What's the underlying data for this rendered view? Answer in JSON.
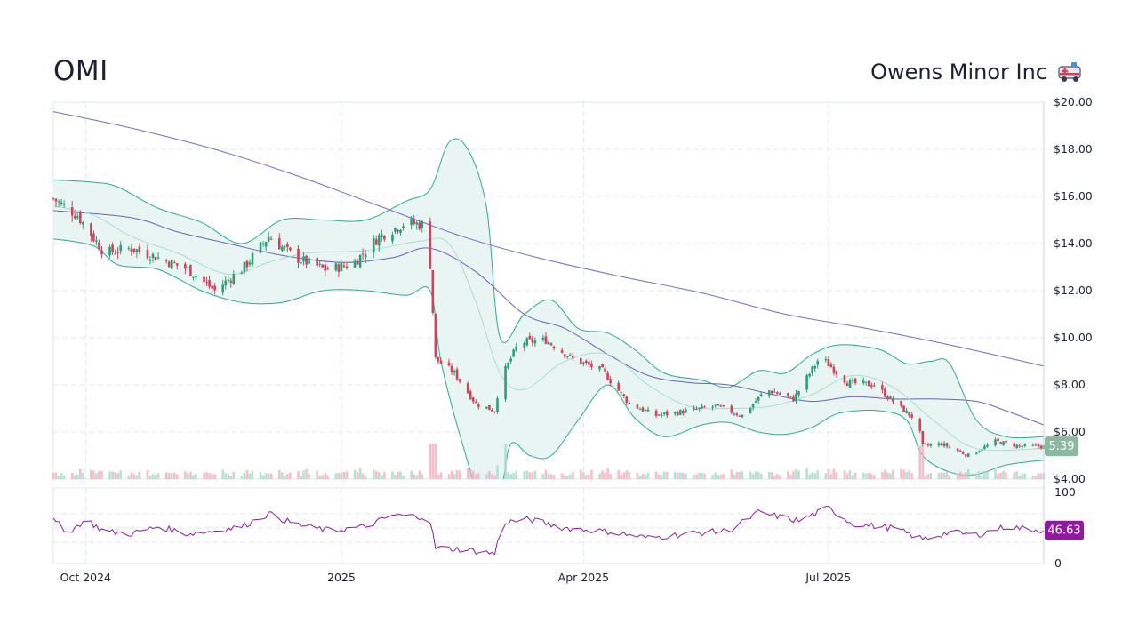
{
  "header": {
    "ticker": "OMI",
    "company": "Owens Minor Inc"
  },
  "colors": {
    "up": "#2e9e76",
    "down": "#d1435b",
    "band_fill": "#e8f5f3",
    "band_line": "#2eaa91",
    "ma_fast": "#a8ddd0",
    "ma_mid": "#6b63b5",
    "ma_long": "#6e6fbf",
    "rsi": "#8e1b9e",
    "price_badge": "#8bb89f",
    "rsi_badge": "#8e1b9e",
    "grid": "#dde7ee"
  },
  "chart_data": {
    "type": "candlestick",
    "price_axis": {
      "ticks": [
        "$20.00",
        "$18.00",
        "$16.00",
        "$14.00",
        "$12.00",
        "$10.00",
        "$8.00",
        "$6.00",
        "$4.00"
      ],
      "range": [
        4,
        20
      ]
    },
    "rsi_axis": {
      "ticks": [
        "100",
        "0"
      ],
      "range": [
        0,
        100
      ]
    },
    "x_axis": {
      "labels": [
        "Oct 2024",
        "2025",
        "Apr 2025",
        "Jul 2025"
      ],
      "range": [
        "2024-09-16",
        "2025-09-19"
      ]
    },
    "last_price_label": "5.39",
    "last_rsi_label": "46.63",
    "price_keypoints": [
      [
        "2024-09-16",
        15.9
      ],
      [
        "2024-09-25",
        15.2
      ],
      [
        "2024-10-05",
        13.6
      ],
      [
        "2024-10-15",
        13.8
      ],
      [
        "2024-10-25",
        13.4
      ],
      [
        "2024-11-05",
        12.9
      ],
      [
        "2024-11-15",
        12.0
      ],
      [
        "2024-11-26",
        13.0
      ],
      [
        "2024-12-05",
        14.3
      ],
      [
        "2024-12-15",
        13.4
      ],
      [
        "2024-12-26",
        12.9
      ],
      [
        "2025-01-05",
        13.1
      ],
      [
        "2025-01-15",
        14.3
      ],
      [
        "2025-01-25",
        14.9
      ],
      [
        "2025-01-31",
        14.8
      ],
      [
        "2025-02-03",
        13.1
      ],
      [
        "2025-02-05",
        9.1
      ],
      [
        "2025-02-12",
        8.5
      ],
      [
        "2025-02-20",
        7.2
      ],
      [
        "2025-02-27",
        6.9
      ],
      [
        "2025-03-01",
        8.2
      ],
      [
        "2025-03-08",
        9.8
      ],
      [
        "2025-03-18",
        9.9
      ],
      [
        "2025-03-28",
        9.1
      ],
      [
        "2025-04-08",
        8.6
      ],
      [
        "2025-04-18",
        7.2
      ],
      [
        "2025-04-28",
        6.7
      ],
      [
        "2025-05-10",
        6.9
      ],
      [
        "2025-05-20",
        7.1
      ],
      [
        "2025-05-30",
        6.7
      ],
      [
        "2025-06-08",
        7.8
      ],
      [
        "2025-06-18",
        7.4
      ],
      [
        "2025-06-28",
        9.2
      ],
      [
        "2025-07-08",
        8.1
      ],
      [
        "2025-07-18",
        8.0
      ],
      [
        "2025-07-28",
        7.0
      ],
      [
        "2025-08-03",
        6.5
      ],
      [
        "2025-08-05",
        5.4
      ],
      [
        "2025-08-12",
        5.5
      ],
      [
        "2025-08-22",
        5.0
      ],
      [
        "2025-09-01",
        5.6
      ],
      [
        "2025-09-10",
        5.4
      ],
      [
        "2025-09-19",
        5.39
      ]
    ],
    "bollinger_upper": [
      [
        "2024-09-16",
        16.7
      ],
      [
        "2024-10-01",
        16.6
      ],
      [
        "2024-10-10",
        16.4
      ],
      [
        "2024-10-25",
        15.5
      ],
      [
        "2024-11-10",
        14.9
      ],
      [
        "2024-11-25",
        14.0
      ],
      [
        "2024-12-10",
        15.0
      ],
      [
        "2024-12-25",
        15.0
      ],
      [
        "2025-01-10",
        15.0
      ],
      [
        "2025-01-25",
        15.8
      ],
      [
        "2025-02-03",
        16.3
      ],
      [
        "2025-02-10",
        18.3
      ],
      [
        "2025-02-17",
        18.0
      ],
      [
        "2025-02-24",
        15.5
      ],
      [
        "2025-03-01",
        10.0
      ],
      [
        "2025-03-10",
        11.0
      ],
      [
        "2025-03-20",
        11.6
      ],
      [
        "2025-03-30",
        10.4
      ],
      [
        "2025-04-10",
        10.2
      ],
      [
        "2025-04-20",
        9.5
      ],
      [
        "2025-05-01",
        8.5
      ],
      [
        "2025-05-15",
        8.2
      ],
      [
        "2025-05-25",
        7.9
      ],
      [
        "2025-06-05",
        8.6
      ],
      [
        "2025-06-15",
        8.5
      ],
      [
        "2025-06-25",
        9.3
      ],
      [
        "2025-07-05",
        9.7
      ],
      [
        "2025-07-20",
        9.5
      ],
      [
        "2025-07-30",
        8.9
      ],
      [
        "2025-08-08",
        9.0
      ],
      [
        "2025-08-15",
        8.9
      ],
      [
        "2025-08-25",
        6.5
      ],
      [
        "2025-09-05",
        5.8
      ],
      [
        "2025-09-19",
        5.8
      ]
    ],
    "bollinger_lower": [
      [
        "2024-09-16",
        14.2
      ],
      [
        "2024-10-01",
        13.9
      ],
      [
        "2024-10-10",
        13.1
      ],
      [
        "2024-10-25",
        12.9
      ],
      [
        "2024-11-10",
        12.0
      ],
      [
        "2024-11-25",
        11.5
      ],
      [
        "2024-12-10",
        11.5
      ],
      [
        "2024-12-25",
        12.0
      ],
      [
        "2025-01-10",
        12.0
      ],
      [
        "2025-01-25",
        11.8
      ],
      [
        "2025-02-03",
        12.0
      ],
      [
        "2025-02-07",
        9.0
      ],
      [
        "2025-02-15",
        5.5
      ],
      [
        "2025-02-22",
        3.2
      ],
      [
        "2025-03-01",
        3.5
      ],
      [
        "2025-03-05",
        5.5
      ],
      [
        "2025-03-12",
        5.0
      ],
      [
        "2025-03-20",
        5.0
      ],
      [
        "2025-03-30",
        6.5
      ],
      [
        "2025-04-10",
        8.0
      ],
      [
        "2025-04-20",
        6.6
      ],
      [
        "2025-05-01",
        5.8
      ],
      [
        "2025-05-15",
        6.3
      ],
      [
        "2025-05-25",
        6.4
      ],
      [
        "2025-06-05",
        6.0
      ],
      [
        "2025-06-15",
        5.9
      ],
      [
        "2025-06-25",
        6.2
      ],
      [
        "2025-07-05",
        6.8
      ],
      [
        "2025-07-20",
        6.9
      ],
      [
        "2025-07-30",
        6.5
      ],
      [
        "2025-08-05",
        5.0
      ],
      [
        "2025-08-15",
        4.3
      ],
      [
        "2025-08-25",
        4.2
      ],
      [
        "2025-09-05",
        4.6
      ],
      [
        "2025-09-19",
        4.8
      ]
    ],
    "ma_fast": [
      [
        "2024-09-16",
        15.6
      ],
      [
        "2024-10-01",
        15.2
      ],
      [
        "2024-10-15",
        14.3
      ],
      [
        "2024-11-01",
        13.6
      ],
      [
        "2024-11-20",
        12.7
      ],
      [
        "2024-12-05",
        13.2
      ],
      [
        "2024-12-20",
        13.6
      ],
      [
        "2025-01-10",
        13.7
      ],
      [
        "2025-01-30",
        14.1
      ],
      [
        "2025-02-10",
        14.0
      ],
      [
        "2025-02-20",
        11.5
      ],
      [
        "2025-03-01",
        8.5
      ],
      [
        "2025-03-10",
        7.8
      ],
      [
        "2025-03-25",
        9.0
      ],
      [
        "2025-04-10",
        9.3
      ],
      [
        "2025-04-25",
        8.0
      ],
      [
        "2025-05-10",
        7.1
      ],
      [
        "2025-05-25",
        7.0
      ],
      [
        "2025-06-10",
        7.1
      ],
      [
        "2025-06-25",
        7.6
      ],
      [
        "2025-07-10",
        8.4
      ],
      [
        "2025-07-25",
        7.9
      ],
      [
        "2025-08-10",
        6.4
      ],
      [
        "2025-08-25",
        5.3
      ],
      [
        "2025-09-19",
        5.3
      ]
    ],
    "ma_mid": [
      [
        "2024-09-16",
        15.4
      ],
      [
        "2024-10-15",
        15.1
      ],
      [
        "2024-11-01",
        14.5
      ],
      [
        "2024-11-20",
        14.0
      ],
      [
        "2024-12-10",
        13.5
      ],
      [
        "2025-01-01",
        13.2
      ],
      [
        "2025-01-20",
        13.4
      ],
      [
        "2025-02-03",
        13.8
      ],
      [
        "2025-02-20",
        12.8
      ],
      [
        "2025-03-10",
        11.0
      ],
      [
        "2025-03-25",
        10.4
      ],
      [
        "2025-04-10",
        9.3
      ],
      [
        "2025-04-25",
        8.4
      ],
      [
        "2025-05-10",
        8.1
      ],
      [
        "2025-05-25",
        8.0
      ],
      [
        "2025-06-10",
        7.6
      ],
      [
        "2025-06-25",
        7.3
      ],
      [
        "2025-07-10",
        7.5
      ],
      [
        "2025-07-25",
        7.4
      ],
      [
        "2025-08-10",
        7.4
      ],
      [
        "2025-08-25",
        7.3
      ],
      [
        "2025-09-05",
        6.9
      ],
      [
        "2025-09-19",
        6.3
      ]
    ],
    "ma_long": [
      [
        "2024-09-16",
        19.6
      ],
      [
        "2024-10-15",
        18.9
      ],
      [
        "2024-11-15",
        18.0
      ],
      [
        "2024-12-15",
        16.9
      ],
      [
        "2025-01-15",
        15.6
      ],
      [
        "2025-02-15",
        14.3
      ],
      [
        "2025-03-15",
        13.4
      ],
      [
        "2025-04-15",
        12.6
      ],
      [
        "2025-05-15",
        11.9
      ],
      [
        "2025-06-15",
        11.0
      ],
      [
        "2025-07-15",
        10.4
      ],
      [
        "2025-08-15",
        9.7
      ],
      [
        "2025-09-19",
        8.8
      ]
    ],
    "rsi_keypoints": [
      [
        "2024-09-16",
        60
      ],
      [
        "2024-09-22",
        44
      ],
      [
        "2024-09-28",
        62
      ],
      [
        "2024-10-05",
        45
      ],
      [
        "2024-10-15",
        42
      ],
      [
        "2024-10-25",
        52
      ],
      [
        "2024-11-05",
        42
      ],
      [
        "2024-11-15",
        46
      ],
      [
        "2024-11-25",
        52
      ],
      [
        "2024-12-05",
        70
      ],
      [
        "2024-12-15",
        55
      ],
      [
        "2024-12-28",
        46
      ],
      [
        "2025-01-10",
        52
      ],
      [
        "2025-01-20",
        68
      ],
      [
        "2025-01-31",
        66
      ],
      [
        "2025-02-03",
        60
      ],
      [
        "2025-02-05",
        22
      ],
      [
        "2025-02-15",
        20
      ],
      [
        "2025-02-27",
        14
      ],
      [
        "2025-03-02",
        58
      ],
      [
        "2025-03-12",
        62
      ],
      [
        "2025-03-25",
        50
      ],
      [
        "2025-04-10",
        45
      ],
      [
        "2025-04-25",
        36
      ],
      [
        "2025-05-10",
        42
      ],
      [
        "2025-05-25",
        46
      ],
      [
        "2025-06-05",
        72
      ],
      [
        "2025-06-20",
        60
      ],
      [
        "2025-07-01",
        78
      ],
      [
        "2025-07-10",
        56
      ],
      [
        "2025-07-25",
        50
      ],
      [
        "2025-08-05",
        34
      ],
      [
        "2025-08-15",
        44
      ],
      [
        "2025-08-25",
        40
      ],
      [
        "2025-09-05",
        52
      ],
      [
        "2025-09-19",
        46.63
      ]
    ]
  }
}
